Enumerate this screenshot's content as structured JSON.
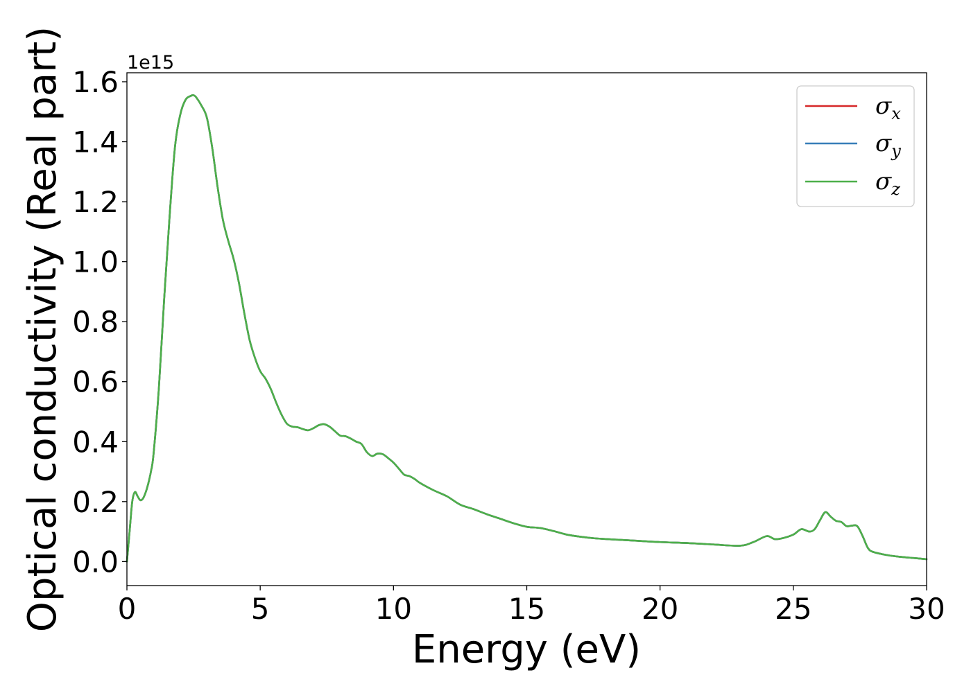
{
  "chart_data": {
    "type": "line",
    "title": "",
    "xlabel": "Energy (eV)",
    "ylabel": "Optical conductivity (Real part)",
    "y_offset_label": "1e15",
    "xlim": [
      0,
      30
    ],
    "ylim": [
      -0.08,
      1.63
    ],
    "xticks": [
      0,
      5,
      10,
      15,
      20,
      25,
      30
    ],
    "xtick_labels": [
      "0",
      "5",
      "10",
      "15",
      "20",
      "25",
      "30"
    ],
    "yticks": [
      0.0,
      0.2,
      0.4,
      0.6,
      0.8,
      1.0,
      1.2,
      1.4,
      1.6
    ],
    "ytick_labels": [
      "0.0",
      "0.2",
      "0.4",
      "0.6",
      "0.8",
      "1.0",
      "1.2",
      "1.4",
      "1.6"
    ],
    "grid": false,
    "legend_position": "top-right",
    "x": [
      0,
      0.1,
      0.2,
      0.3,
      0.4,
      0.5,
      0.6,
      0.7,
      0.8,
      0.9,
      1.0,
      1.2,
      1.4,
      1.6,
      1.8,
      2.0,
      2.2,
      2.4,
      2.5,
      2.6,
      2.8,
      3.0,
      3.2,
      3.4,
      3.6,
      3.8,
      4.0,
      4.2,
      4.4,
      4.6,
      4.8,
      5.0,
      5.2,
      5.4,
      5.6,
      5.8,
      6.0,
      6.2,
      6.4,
      6.6,
      6.8,
      7.0,
      7.2,
      7.4,
      7.6,
      7.8,
      8.0,
      8.2,
      8.4,
      8.6,
      8.8,
      9.0,
      9.2,
      9.4,
      9.6,
      9.8,
      10.0,
      10.2,
      10.4,
      10.6,
      10.8,
      11.0,
      11.5,
      12.0,
      12.5,
      13.0,
      13.5,
      14.0,
      14.5,
      15.0,
      15.5,
      16.0,
      16.5,
      17.0,
      17.5,
      18.0,
      19.0,
      20.0,
      21.0,
      22.0,
      23.0,
      23.5,
      24.0,
      24.3,
      24.6,
      25.0,
      25.3,
      25.6,
      25.8,
      26.0,
      26.2,
      26.4,
      26.6,
      26.8,
      27.0,
      27.2,
      27.4,
      27.6,
      27.8,
      28.0,
      28.5,
      29.0,
      29.5,
      30.0
    ],
    "series": [
      {
        "name": "σx",
        "color": "#d62728",
        "y": [
          0.0,
          0.1,
          0.2,
          0.232,
          0.218,
          0.205,
          0.21,
          0.23,
          0.26,
          0.3,
          0.36,
          0.58,
          0.88,
          1.15,
          1.38,
          1.49,
          1.54,
          1.553,
          1.555,
          1.548,
          1.52,
          1.48,
          1.38,
          1.25,
          1.14,
          1.07,
          1.01,
          0.93,
          0.83,
          0.74,
          0.68,
          0.635,
          0.61,
          0.575,
          0.53,
          0.49,
          0.46,
          0.45,
          0.448,
          0.442,
          0.438,
          0.445,
          0.455,
          0.458,
          0.45,
          0.435,
          0.42,
          0.418,
          0.41,
          0.4,
          0.392,
          0.365,
          0.352,
          0.36,
          0.358,
          0.345,
          0.33,
          0.31,
          0.29,
          0.285,
          0.275,
          0.262,
          0.238,
          0.218,
          0.19,
          0.175,
          0.158,
          0.143,
          0.128,
          0.116,
          0.112,
          0.102,
          0.09,
          0.083,
          0.078,
          0.075,
          0.07,
          0.065,
          0.062,
          0.057,
          0.053,
          0.065,
          0.085,
          0.075,
          0.078,
          0.09,
          0.108,
          0.1,
          0.108,
          0.138,
          0.165,
          0.15,
          0.136,
          0.132,
          0.118,
          0.12,
          0.118,
          0.085,
          0.045,
          0.032,
          0.022,
          0.016,
          0.012,
          0.008
        ]
      },
      {
        "name": "σy",
        "color": "#377eb8",
        "y": [
          0.0,
          0.1,
          0.2,
          0.232,
          0.218,
          0.205,
          0.21,
          0.23,
          0.26,
          0.3,
          0.36,
          0.58,
          0.88,
          1.15,
          1.38,
          1.49,
          1.54,
          1.553,
          1.555,
          1.548,
          1.52,
          1.48,
          1.38,
          1.25,
          1.14,
          1.07,
          1.01,
          0.93,
          0.83,
          0.74,
          0.68,
          0.635,
          0.61,
          0.575,
          0.53,
          0.49,
          0.46,
          0.45,
          0.448,
          0.442,
          0.438,
          0.445,
          0.455,
          0.458,
          0.45,
          0.435,
          0.42,
          0.418,
          0.41,
          0.4,
          0.392,
          0.365,
          0.352,
          0.36,
          0.358,
          0.345,
          0.33,
          0.31,
          0.29,
          0.285,
          0.275,
          0.262,
          0.238,
          0.218,
          0.19,
          0.175,
          0.158,
          0.143,
          0.128,
          0.116,
          0.112,
          0.102,
          0.09,
          0.083,
          0.078,
          0.075,
          0.07,
          0.065,
          0.062,
          0.057,
          0.053,
          0.065,
          0.085,
          0.075,
          0.078,
          0.09,
          0.108,
          0.1,
          0.108,
          0.138,
          0.165,
          0.15,
          0.136,
          0.132,
          0.118,
          0.12,
          0.118,
          0.085,
          0.045,
          0.032,
          0.022,
          0.016,
          0.012,
          0.008
        ]
      },
      {
        "name": "σz",
        "color": "#4daf4a",
        "y": [
          0.0,
          0.1,
          0.2,
          0.232,
          0.218,
          0.205,
          0.21,
          0.23,
          0.26,
          0.3,
          0.36,
          0.58,
          0.88,
          1.15,
          1.38,
          1.49,
          1.54,
          1.553,
          1.555,
          1.548,
          1.52,
          1.48,
          1.38,
          1.25,
          1.14,
          1.07,
          1.01,
          0.93,
          0.83,
          0.74,
          0.68,
          0.635,
          0.61,
          0.575,
          0.53,
          0.49,
          0.46,
          0.45,
          0.448,
          0.442,
          0.438,
          0.445,
          0.455,
          0.458,
          0.45,
          0.435,
          0.42,
          0.418,
          0.41,
          0.4,
          0.392,
          0.365,
          0.352,
          0.36,
          0.358,
          0.345,
          0.33,
          0.31,
          0.29,
          0.285,
          0.275,
          0.262,
          0.238,
          0.218,
          0.19,
          0.175,
          0.158,
          0.143,
          0.128,
          0.116,
          0.112,
          0.102,
          0.09,
          0.083,
          0.078,
          0.075,
          0.07,
          0.065,
          0.062,
          0.057,
          0.053,
          0.065,
          0.085,
          0.075,
          0.078,
          0.09,
          0.108,
          0.1,
          0.108,
          0.138,
          0.165,
          0.15,
          0.136,
          0.132,
          0.118,
          0.12,
          0.118,
          0.085,
          0.045,
          0.032,
          0.022,
          0.016,
          0.012,
          0.008
        ]
      }
    ],
    "legend": [
      {
        "symbol": "σ",
        "sub": "x",
        "color": "#d62728"
      },
      {
        "symbol": "σ",
        "sub": "y",
        "color": "#377eb8"
      },
      {
        "symbol": "σ",
        "sub": "z",
        "color": "#4daf4a"
      }
    ]
  }
}
